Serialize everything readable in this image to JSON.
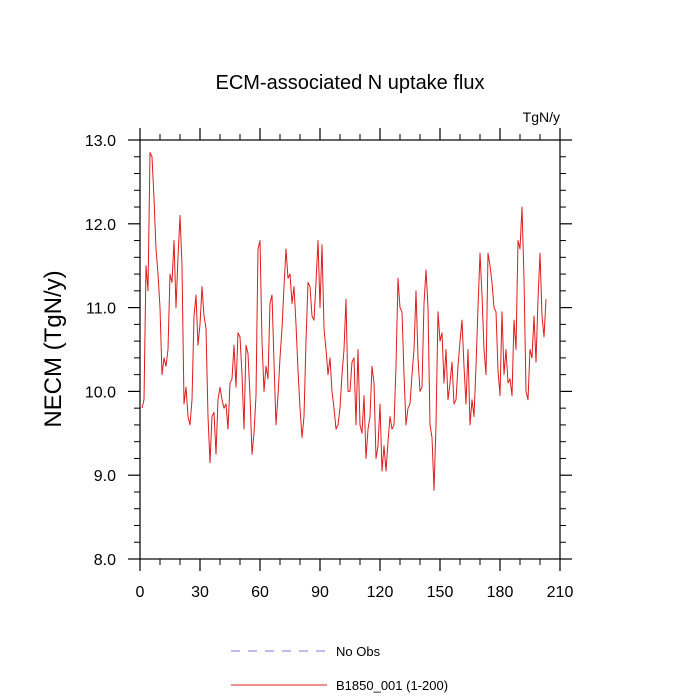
{
  "chart_data": {
    "type": "line",
    "title": "ECM-associated N uptake flux",
    "units_label": "TgN/y",
    "xlabel": "",
    "ylabel": "NECM  (TgN/y)",
    "xlim": [
      0,
      210
    ],
    "ylim": [
      8.0,
      13.0
    ],
    "x_ticks": [
      0,
      30,
      60,
      90,
      120,
      150,
      180,
      210
    ],
    "x_tick_labels": [
      "0",
      "30",
      "60",
      "90",
      "120",
      "150",
      "180",
      "210"
    ],
    "y_ticks": [
      8.0,
      9.0,
      10.0,
      11.0,
      12.0,
      13.0
    ],
    "y_tick_labels": [
      "8.0",
      "9.0",
      "10.0",
      "11.0",
      "12.0",
      "13.0"
    ],
    "grid": false,
    "legend": [
      {
        "label": "No Obs",
        "color": "#7a7adf",
        "style": "dashed"
      },
      {
        "label": "B1850_001 (1-200)",
        "color": "#e01b1b",
        "style": "solid"
      }
    ],
    "series": [
      {
        "name": "B1850_001 (1-200)",
        "color": "#e01b1b",
        "x_start": 1,
        "x_step": 1,
        "values": [
          9.8,
          9.9,
          11.5,
          11.2,
          12.85,
          12.8,
          12.3,
          11.7,
          11.4,
          11.0,
          10.2,
          10.4,
          10.3,
          10.5,
          11.4,
          11.3,
          11.8,
          11.0,
          11.6,
          12.1,
          11.5,
          9.85,
          10.05,
          9.7,
          9.6,
          9.9,
          10.9,
          11.15,
          10.55,
          10.8,
          11.25,
          10.9,
          10.75,
          9.7,
          9.15,
          9.7,
          9.75,
          9.25,
          9.9,
          10.05,
          9.9,
          9.8,
          9.85,
          9.55,
          10.1,
          10.15,
          10.55,
          10.05,
          10.7,
          10.65,
          10.2,
          9.55,
          10.55,
          10.45,
          9.95,
          9.25,
          9.5,
          9.95,
          11.7,
          11.8,
          10.6,
          10.0,
          10.3,
          10.15,
          11.05,
          11.15,
          10.35,
          9.6,
          9.95,
          10.4,
          10.75,
          11.25,
          11.7,
          11.35,
          11.4,
          11.05,
          11.25,
          10.8,
          10.25,
          9.8,
          9.45,
          9.7,
          10.6,
          11.3,
          11.25,
          10.9,
          10.85,
          11.3,
          11.8,
          11.0,
          11.75,
          10.75,
          10.5,
          10.2,
          10.4,
          10.0,
          9.8,
          9.55,
          9.6,
          9.8,
          10.2,
          10.5,
          11.1,
          10.0,
          10.0,
          10.35,
          10.4,
          9.6,
          10.5,
          9.6,
          9.5,
          9.95,
          9.2,
          9.55,
          9.7,
          10.3,
          10.1,
          9.2,
          9.35,
          9.85,
          9.05,
          9.35,
          9.05,
          9.4,
          9.7,
          9.55,
          9.6,
          10.3,
          11.35,
          11.0,
          10.95,
          10.2,
          9.6,
          9.8,
          9.85,
          10.2,
          10.5,
          11.2,
          10.4,
          10.0,
          10.05,
          11.05,
          11.45,
          11.0,
          9.6,
          9.45,
          8.82,
          9.6,
          10.95,
          10.6,
          10.7,
          10.1,
          10.5,
          9.9,
          10.1,
          10.35,
          9.85,
          9.9,
          10.3,
          10.6,
          10.85,
          10.3,
          9.85,
          10.5,
          9.6,
          9.9,
          9.7,
          10.3,
          11.0,
          11.65,
          11.15,
          10.5,
          10.2,
          11.65,
          11.5,
          11.3,
          11.0,
          10.95,
          10.25,
          9.95,
          10.95,
          10.2,
          10.5,
          10.1,
          10.15,
          9.95,
          10.85,
          10.5,
          11.8,
          11.7,
          12.2,
          11.35,
          10.0,
          9.9,
          10.5,
          10.4,
          10.9,
          10.35,
          11.1,
          11.65,
          10.9,
          10.65,
          11.1
        ]
      }
    ]
  }
}
